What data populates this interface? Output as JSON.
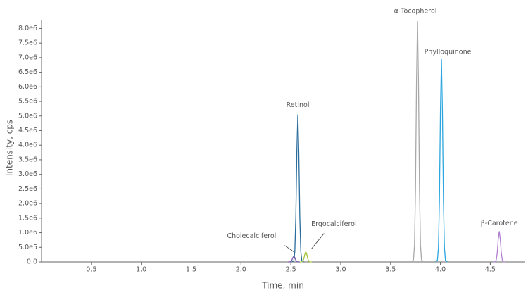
{
  "chart_data": {
    "type": "line",
    "xlabel": "Time, min",
    "ylabel": "Intensity, cps",
    "xlim": [
      0,
      4.85
    ],
    "ylim": [
      0,
      8300000
    ],
    "xticks": [
      0.5,
      {
        "value": 1,
        "label": "1.0"
      },
      1.5,
      {
        "value": 2,
        "label": "2.0"
      },
      2.5,
      {
        "value": 3,
        "label": "3.0"
      },
      3.5,
      {
        "value": 4,
        "label": "4.0"
      },
      4.5
    ],
    "yticks": [
      {
        "value": 0,
        "label": "0.0"
      },
      {
        "value": 500000,
        "label": "5.0e5"
      },
      {
        "value": 1000000,
        "label": "1.0e6"
      },
      {
        "value": 1500000,
        "label": "1.5e6"
      },
      {
        "value": 2000000,
        "label": "2.0e6"
      },
      {
        "value": 2500000,
        "label": "2.5e6"
      },
      {
        "value": 3000000,
        "label": "3.0e6"
      },
      {
        "value": 3500000,
        "label": "3.5e6"
      },
      {
        "value": 4000000,
        "label": "4.0e6"
      },
      {
        "value": 4500000,
        "label": "4.5e6"
      },
      {
        "value": 5000000,
        "label": "5.0e6"
      },
      {
        "value": 5500000,
        "label": "5.5e6"
      },
      {
        "value": 6000000,
        "label": "6.0e6"
      },
      {
        "value": 6500000,
        "label": "6.5e6"
      },
      {
        "value": 7000000,
        "label": "7.0e6"
      },
      {
        "value": 7500000,
        "label": "7.5e6"
      },
      {
        "value": 8000000,
        "label": "8.0e6"
      }
    ],
    "series": [
      {
        "name": "Cholecalciferol",
        "color": "#7a5aa6",
        "x": [
          2.47,
          2.49,
          2.5,
          2.51,
          2.52,
          2.53,
          2.54,
          2.55,
          2.56,
          2.57,
          2.59
        ],
        "values": [
          0,
          1760,
          14000,
          61200,
          148800,
          200000,
          148800,
          61200,
          14000,
          1760,
          0
        ]
      },
      {
        "name": "Retinol",
        "color": "#2a6c9c",
        "x": [
          2.51,
          2.53,
          2.54,
          2.55,
          2.56,
          2.57,
          2.58,
          2.59,
          2.6,
          2.61,
          2.63
        ],
        "values": [
          0,
          44000,
          354000,
          1545000,
          3757000,
          5050000,
          3757000,
          1545000,
          354000,
          44000,
          0
        ]
      },
      {
        "name": "Ergocalciferol",
        "color": "#a6c43a",
        "x": [
          2.59,
          2.61,
          2.62,
          2.63,
          2.64,
          2.65,
          2.66,
          2.67,
          2.68,
          2.69,
          2.71
        ],
        "values": [
          0,
          3080,
          24500,
          107100,
          260400,
          350000,
          260400,
          107100,
          24500,
          3080,
          0
        ]
      },
      {
        "name": "α-Tocopherol",
        "color": "#a8a8a8",
        "x": [
          3.71,
          3.73,
          3.74,
          3.75,
          3.76,
          3.77,
          3.78,
          3.79,
          3.8,
          3.81,
          3.83
        ],
        "values": [
          0,
          72600,
          577500,
          2524500,
          6138000,
          8250000,
          6138000,
          2524500,
          577500,
          72600,
          0
        ]
      },
      {
        "name": "Phylloquinone",
        "color": "#2ba6de",
        "x": [
          3.95,
          3.97,
          3.98,
          3.99,
          4,
          4.01,
          4.02,
          4.03,
          4.04,
          4.05,
          4.07
        ],
        "values": [
          0,
          61200,
          486500,
          2126700,
          5170800,
          6950000,
          5170800,
          2126700,
          486500,
          61200,
          0
        ]
      },
      {
        "name": "β-Carotene",
        "color": "#b07fd2",
        "x": [
          4.53,
          4.55,
          4.56,
          4.57,
          4.58,
          4.59,
          4.6,
          4.61,
          4.62,
          4.63,
          4.65
        ],
        "values": [
          0,
          9240,
          73500,
          321300,
          781200,
          1050000,
          781200,
          321300,
          73500,
          9240,
          0
        ]
      }
    ]
  }
}
